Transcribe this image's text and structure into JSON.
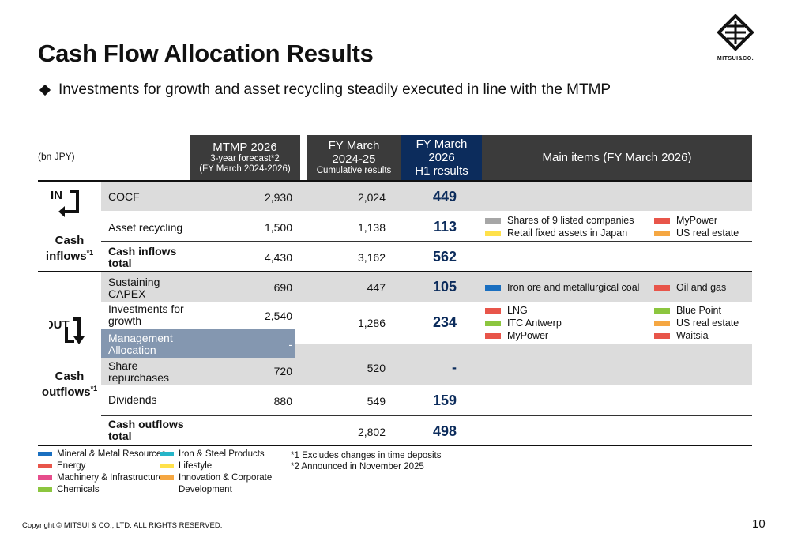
{
  "title": "Cash Flow Allocation Results",
  "subtitle": "Investments for growth and asset recycling steadily executed in line with the MTMP",
  "logo_text": "MITSUI&CO.",
  "unit": "(bn JPY)",
  "headers": {
    "mtmp_line1": "MTMP 2026",
    "mtmp_line2": "3-year forecast*2",
    "mtmp_line3": "(FY March 2024-2026)",
    "fy25_line1": "FY March",
    "fy25_line2": "2024-25",
    "fy25_line3": "Cumulative results",
    "h1_line1": "FY March 2026",
    "h1_line2": "H1 results",
    "main_items": "Main items (FY March 2026)"
  },
  "sections": {
    "inflows_icon_text": "IN",
    "inflows_label_1": "Cash",
    "inflows_label_2": "inflows",
    "inflows_sup": "*1",
    "outflows_icon_text": "OUT",
    "outflows_label_1": "Cash",
    "outflows_label_2": "outflows",
    "outflows_sup": "*1"
  },
  "rows": {
    "cocf": {
      "label": "COCF",
      "mtmp": "2,930",
      "fy25": "2,024",
      "h1": "449"
    },
    "asset_recycling": {
      "label": "Asset recycling",
      "mtmp": "1,500",
      "fy25": "1,138",
      "h1": "113"
    },
    "inflows_total": {
      "label1": "Cash inflows",
      "label2": "total",
      "mtmp": "4,430",
      "fy25": "3,162",
      "h1": "562"
    },
    "sustaining_capex": {
      "label1": "Sustaining",
      "label2": "CAPEX",
      "mtmp": "690",
      "fy25": "447",
      "h1": "105"
    },
    "investments_growth": {
      "label1": "Investments for",
      "label2": "growth",
      "mtmp": "2,540",
      "fy25": "1,286",
      "h1": "234"
    },
    "management_allocation": {
      "label1": "Management",
      "label2": "Allocation",
      "mtmp": "-"
    },
    "share_repurchases": {
      "label1": "Share",
      "label2": "repurchases",
      "mtmp": "720",
      "fy25": "520",
      "h1": "-"
    },
    "dividends": {
      "label": "Dividends",
      "mtmp": "880",
      "fy25": "549",
      "h1": "159"
    },
    "outflows_total": {
      "label1": "Cash outflows",
      "label2": "total",
      "fy25": "2,802",
      "h1": "498"
    }
  },
  "main_items": {
    "asset_recycling": [
      {
        "label": "Shares of 9 listed companies",
        "color": "#a6a6a6"
      },
      {
        "label": "MyPower",
        "color": "#e8554a"
      },
      {
        "label": "Retail fixed assets in Japan",
        "color": "#ffe14a"
      },
      {
        "label": "US real estate",
        "color": "#f5a742"
      }
    ],
    "sustaining_capex": [
      {
        "label": "Iron ore and metallurgical coal",
        "color": "#1a6fc0"
      },
      {
        "label": "Oil and gas",
        "color": "#e8554a"
      }
    ],
    "investments_growth": [
      {
        "label": "LNG",
        "color": "#e8554a"
      },
      {
        "label": "Blue Point",
        "color": "#8cc63f"
      },
      {
        "label": "ITC Antwerp",
        "color": "#8cc63f"
      },
      {
        "label": "US real estate",
        "color": "#f5a742"
      },
      {
        "label": "MyPower",
        "color": "#e8554a"
      },
      {
        "label": "Waitsia",
        "color": "#e8554a"
      }
    ]
  },
  "legend": [
    {
      "label": "Mineral & Metal Resources",
      "color": "#1a6fc0"
    },
    {
      "label": "Energy",
      "color": "#e8554a"
    },
    {
      "label": "Machinery & Infrastructure",
      "color": "#e64d8c"
    },
    {
      "label": "Chemicals",
      "color": "#8cc63f"
    },
    {
      "label": "Iron & Steel Products",
      "color": "#26b5c8"
    },
    {
      "label": "Lifestyle",
      "color": "#ffe14a"
    },
    {
      "label": "Innovation & Corporate",
      "color": "#f5a742"
    },
    {
      "label": "Development",
      "color": ""
    }
  ],
  "notes": {
    "note1": "*1 Excludes changes in time deposits",
    "note2": "*2 Announced in November 2025"
  },
  "copyright": "Copyright © MITSUI & CO., LTD. ALL RIGHTS RESERVED.",
  "page_number": "10"
}
